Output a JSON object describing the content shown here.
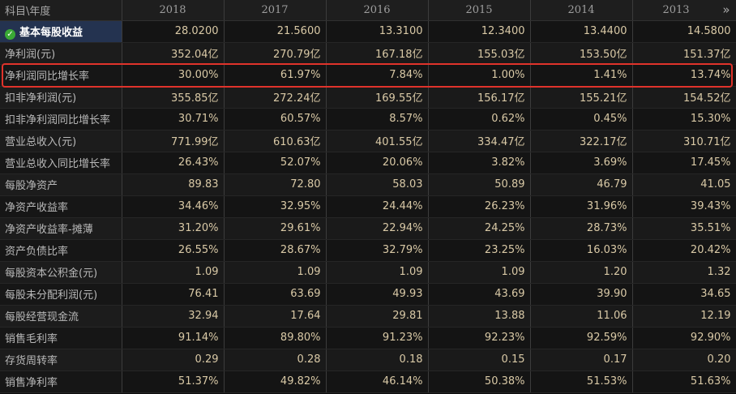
{
  "header": {
    "corner_label": "科目\\年度",
    "years": [
      "2018",
      "2017",
      "2016",
      "2015",
      "2014",
      "2013"
    ],
    "more_icon": "»"
  },
  "rows": [
    {
      "label": "基本每股收益",
      "values": [
        "28.0200",
        "21.5600",
        "13.3100",
        "12.3400",
        "13.4400",
        "14.5800"
      ]
    },
    {
      "label": "净利润(元)",
      "values": [
        "352.04亿",
        "270.79亿",
        "167.18亿",
        "155.03亿",
        "153.50亿",
        "151.37亿"
      ]
    },
    {
      "label": "净利润同比增长率",
      "values": [
        "30.00%",
        "61.97%",
        "7.84%",
        "1.00%",
        "1.41%",
        "13.74%"
      ]
    },
    {
      "label": "扣非净利润(元)",
      "values": [
        "355.85亿",
        "272.24亿",
        "169.55亿",
        "156.17亿",
        "155.21亿",
        "154.52亿"
      ]
    },
    {
      "label": "扣非净利润同比增长率",
      "values": [
        "30.71%",
        "60.57%",
        "8.57%",
        "0.62%",
        "0.45%",
        "15.30%"
      ]
    },
    {
      "label": "营业总收入(元)",
      "values": [
        "771.99亿",
        "610.63亿",
        "401.55亿",
        "334.47亿",
        "322.17亿",
        "310.71亿"
      ]
    },
    {
      "label": "营业总收入同比增长率",
      "values": [
        "26.43%",
        "52.07%",
        "20.06%",
        "3.82%",
        "3.69%",
        "17.45%"
      ]
    },
    {
      "label": "每股净资产",
      "values": [
        "89.83",
        "72.80",
        "58.03",
        "50.89",
        "46.79",
        "41.05"
      ]
    },
    {
      "label": "净资产收益率",
      "values": [
        "34.46%",
        "32.95%",
        "24.44%",
        "26.23%",
        "31.96%",
        "39.43%"
      ]
    },
    {
      "label": "净资产收益率-摊薄",
      "values": [
        "31.20%",
        "29.61%",
        "22.94%",
        "24.25%",
        "28.73%",
        "35.51%"
      ]
    },
    {
      "label": "资产负债比率",
      "values": [
        "26.55%",
        "28.67%",
        "32.79%",
        "23.25%",
        "16.03%",
        "20.42%"
      ]
    },
    {
      "label": "每股资本公积金(元)",
      "values": [
        "1.09",
        "1.09",
        "1.09",
        "1.09",
        "1.20",
        "1.32"
      ]
    },
    {
      "label": "每股未分配利润(元)",
      "values": [
        "76.41",
        "63.69",
        "49.93",
        "43.69",
        "39.90",
        "34.65"
      ]
    },
    {
      "label": "每股经营现金流",
      "values": [
        "32.94",
        "17.64",
        "29.81",
        "13.88",
        "11.06",
        "12.19"
      ]
    },
    {
      "label": "销售毛利率",
      "values": [
        "91.14%",
        "89.80%",
        "91.23%",
        "92.23%",
        "92.59%",
        "92.90%"
      ]
    },
    {
      "label": "存货周转率",
      "values": [
        "0.29",
        "0.28",
        "0.18",
        "0.15",
        "0.17",
        "0.20"
      ]
    },
    {
      "label": "销售净利率",
      "values": [
        "51.37%",
        "49.82%",
        "46.14%",
        "50.38%",
        "51.53%",
        "51.63%"
      ]
    }
  ],
  "active_row_icon": "check-icon",
  "colors": {
    "background": "#0c0c0c",
    "value_text": "#d9c9a6",
    "label_text": "#b9b9b9",
    "active_row": "#243350",
    "check_icon": "#3aa935",
    "highlight_frame": "#e0332b"
  }
}
